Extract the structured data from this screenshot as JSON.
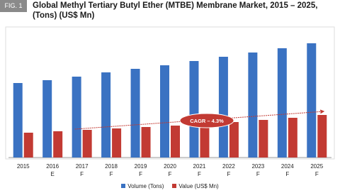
{
  "chart_data": {
    "type": "bar",
    "label": "FIG. 1",
    "title": "Global Methyl Tertiary Butyl Ether (MTBE) Membrane Market, 2015 – 2025, (Tons) (US$ Mn)",
    "categories": [
      "2015",
      "2016\nE",
      "2017\nF",
      "2018\nF",
      "2019\nF",
      "2020\nF",
      "2021\nF",
      "2022\nF",
      "2023\nF",
      "2024\nF",
      "2025\nF"
    ],
    "series": [
      {
        "name": "Volume (Tons)",
        "color": "#3a72c2",
        "values": [
          105,
          109,
          114,
          120,
          125,
          130,
          136,
          142,
          148,
          154,
          161
        ]
      },
      {
        "name": "Value (US$ Mn)",
        "color": "#c23a33",
        "values": [
          35,
          37,
          39,
          41,
          43,
          45,
          47,
          50,
          53,
          56,
          60
        ]
      }
    ],
    "ylim": [
      0,
      180
    ],
    "annotation": "CAGR – 4.3%"
  }
}
